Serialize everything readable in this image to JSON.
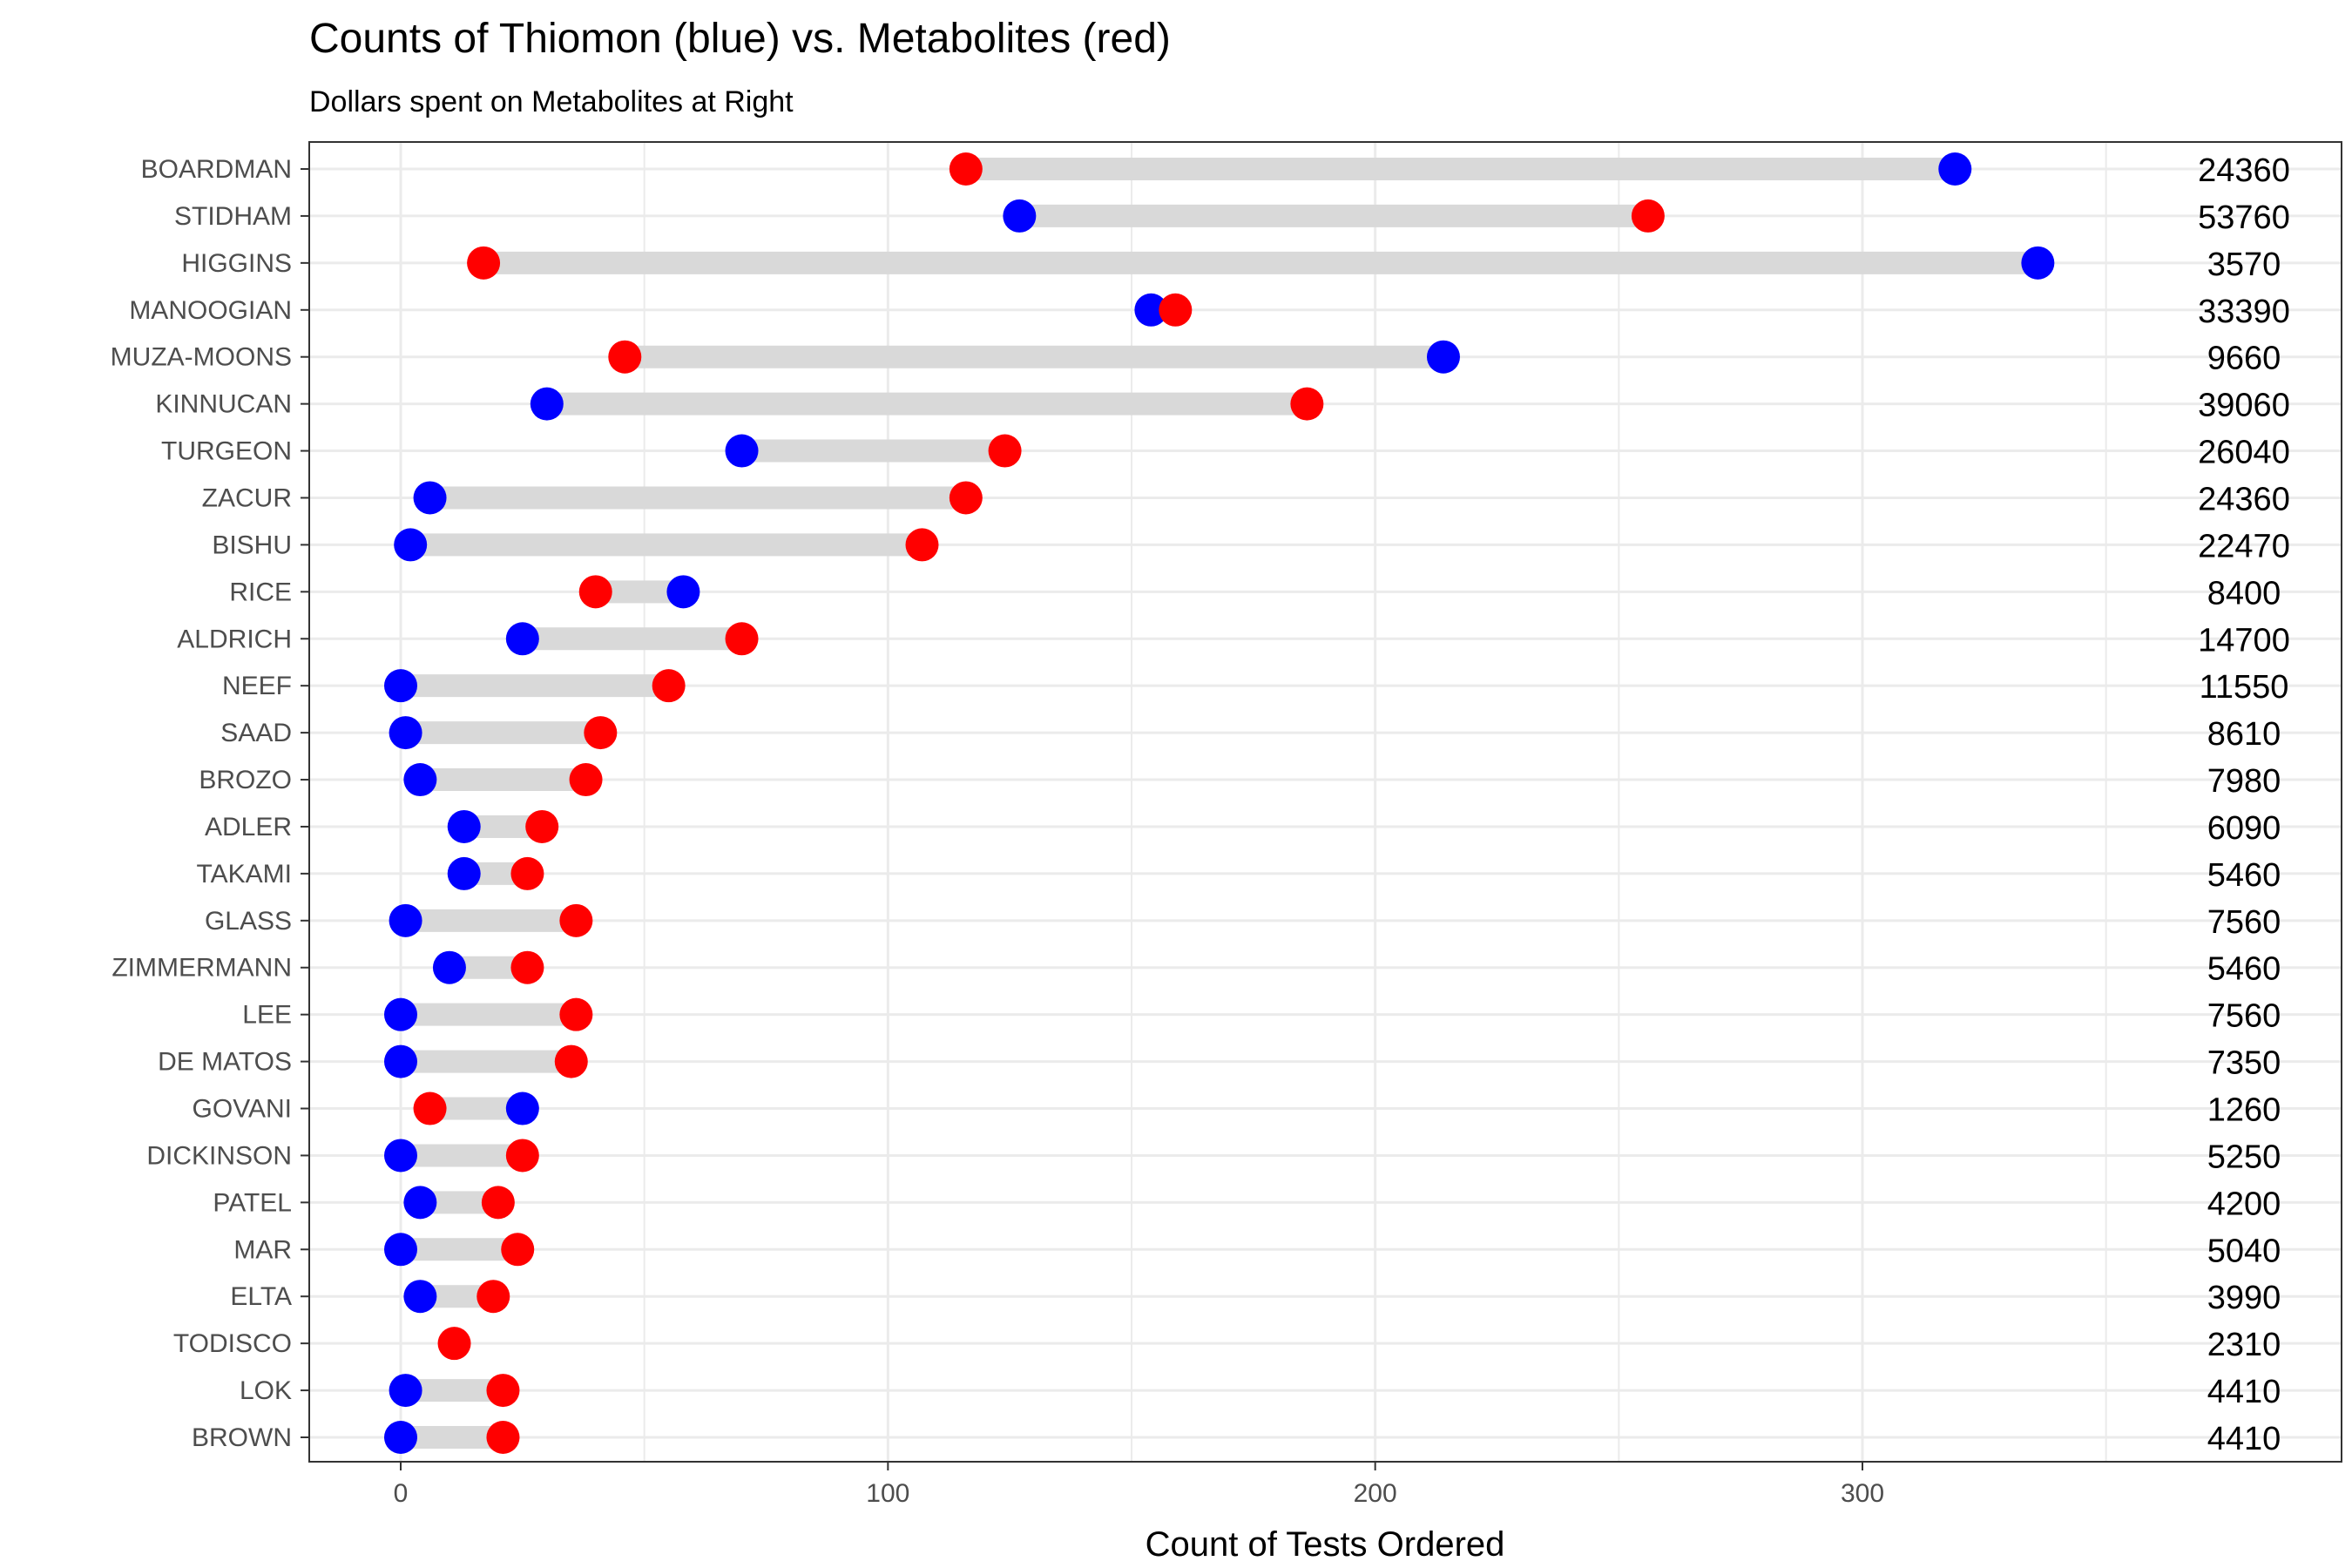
{
  "chart_data": {
    "type": "dumbbell",
    "title": "Counts of Thiomon (blue) vs. Metabolites (red)",
    "subtitle": "Dollars spent on Metabolites at Right",
    "xlabel": "Count of Tests Ordered",
    "ylabel": "",
    "xlim": [
      -19,
      383
    ],
    "xticks": [
      0,
      100,
      200,
      300
    ],
    "grid": true,
    "colors": {
      "blue": "#0000ff",
      "red": "#ff0000",
      "segment": "#d9d9d9",
      "grid": "#ebebeb"
    },
    "series": [
      {
        "name": "Thiomon",
        "color": "#0000ff"
      },
      {
        "name": "Metabolites",
        "color": "#ff0000"
      }
    ],
    "categories": [
      "BOARDMAN",
      "STIDHAM",
      "HIGGINS",
      "MANOOGIAN",
      "MUZA-MOONS",
      "KINNUCAN",
      "TURGEON",
      "ZACUR",
      "BISHU",
      "RICE",
      "ALDRICH",
      "NEEF",
      "SAAD",
      "BROZO",
      "ADLER",
      "TAKAMI",
      "GLASS",
      "ZIMMERMANN",
      "LEE",
      "DE MATOS",
      "GOVANI",
      "DICKINSON",
      "PATEL",
      "MAR",
      "ELTA",
      "TODISCO",
      "LOK",
      "BROWN"
    ],
    "thiomon": [
      319,
      127,
      336,
      154,
      214,
      30,
      70,
      6,
      2,
      58,
      25,
      0,
      1,
      4,
      13,
      13,
      1,
      10,
      0,
      0,
      25,
      0,
      4,
      0,
      4,
      null,
      1,
      0
    ],
    "metabolites": [
      116,
      256,
      17,
      159,
      46,
      186,
      124,
      116,
      107,
      40,
      70,
      55,
      41,
      38,
      29,
      26,
      36,
      26,
      36,
      35,
      6,
      25,
      20,
      24,
      19,
      11,
      21,
      21
    ],
    "dollars": [
      "24360",
      "53760",
      "3570",
      "33390",
      "9660",
      "39060",
      "26040",
      "24360",
      "22470",
      "8400",
      "14700",
      "11550",
      "8610",
      "7980",
      "6090",
      "5460",
      "7560",
      "5460",
      "7560",
      "7350",
      "1260",
      "5250",
      "4200",
      "5040",
      "3990",
      "2310",
      "4410",
      "4410"
    ]
  }
}
